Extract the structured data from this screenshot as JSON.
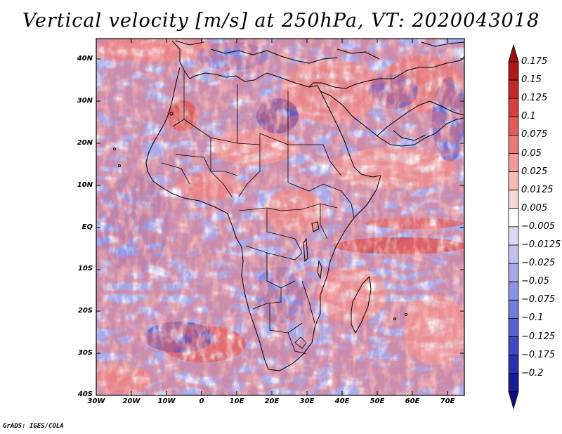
{
  "title": "Vertical velocity [m/s] at 250hPa, VT: 2020043018",
  "credit": "GrADS: IGES/COLA",
  "map": {
    "lon_range": [
      -30,
      75
    ],
    "lat_range": [
      -40,
      45
    ],
    "lat_labels": [
      "40N",
      "30N",
      "20N",
      "10N",
      "EQ",
      "10S",
      "20S",
      "30S",
      "40S"
    ],
    "lon_labels": [
      "30W",
      "20W",
      "10W",
      "0",
      "10E",
      "20E",
      "30E",
      "40E",
      "50E",
      "60E",
      "70E"
    ]
  },
  "colorbar": {
    "labels": [
      "0.175",
      "0.15",
      "0.125",
      "0.1",
      "0.075",
      "0.05",
      "0.025",
      "0.0125",
      "0.005",
      "−0.005",
      "−0.0125",
      "−0.025",
      "−0.05",
      "−0.075",
      "−0.1",
      "−0.125",
      "−0.175",
      "−0.2"
    ],
    "colors": [
      "#b01818",
      "#c62828",
      "#d84040",
      "#e25a5a",
      "#ea7a7a",
      "#f09a9a",
      "#f5baba",
      "#f9d6d6",
      "#ffffff",
      "#d8daf6",
      "#bfc2f0",
      "#a6aaea",
      "#8d92e2",
      "#7479da",
      "#5b60d0",
      "#4246c2",
      "#2d2fb0",
      "#1a1a9a"
    ],
    "top_color": "#9a1010",
    "bottom_color": "#10107e"
  }
}
